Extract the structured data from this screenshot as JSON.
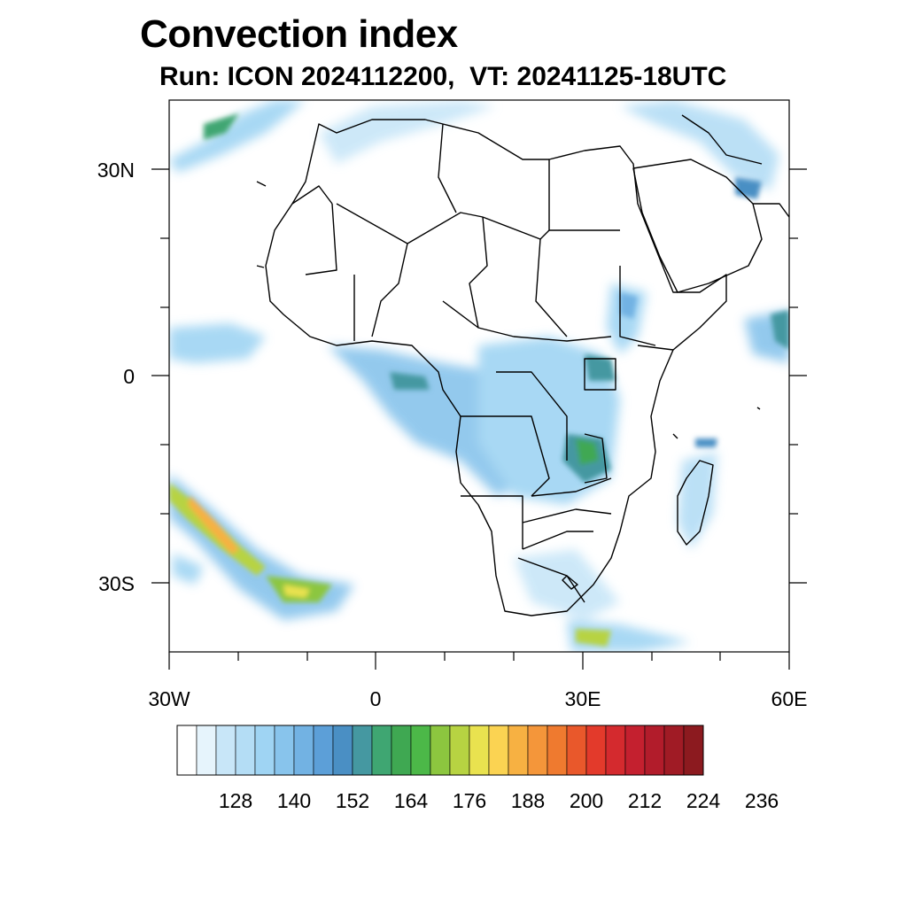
{
  "title": "Convection index",
  "subtitle": "Run: ICON 2024112200,  VT: 20241125-18UTC",
  "map": {
    "lat_labels": [
      "30N",
      "0",
      "30S"
    ],
    "lon_labels": [
      "30W",
      "0",
      "30E",
      "60E"
    ],
    "lon_range_deg": [
      -30,
      60
    ],
    "lat_range_deg": [
      -40,
      40
    ],
    "coastline_color": "#000000",
    "border_color": "#000000"
  },
  "colorbar": {
    "tick_labels": [
      "128",
      "140",
      "152",
      "164",
      "176",
      "188",
      "200",
      "212",
      "224",
      "236"
    ],
    "colors": [
      "#ffffff",
      "#e6f4fc",
      "#c8e6f8",
      "#b4ddf5",
      "#9fd4f3",
      "#88c4ec",
      "#72b2e3",
      "#5c9fd8",
      "#4a8fc4",
      "#4598a1",
      "#3fa672",
      "#3fa852",
      "#4cb848",
      "#8cc63f",
      "#b7d342",
      "#e9e24f",
      "#fbd352",
      "#f7b142",
      "#f4963a",
      "#ef7a2f",
      "#e9582b",
      "#e33a2b",
      "#d42a2e",
      "#c4202f",
      "#b21c2b",
      "#a01b25",
      "#8c1a1f"
    ]
  }
}
